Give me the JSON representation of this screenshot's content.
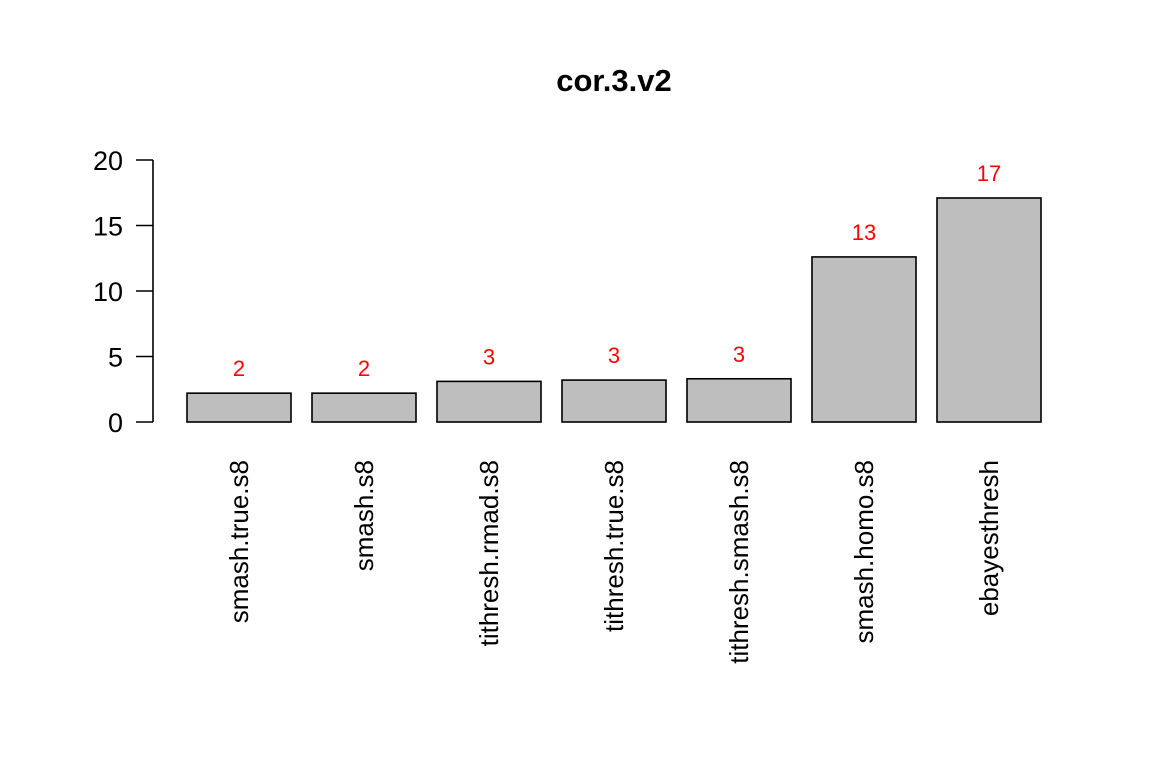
{
  "chart_data": {
    "type": "bar",
    "title": "cor.3.v2",
    "xlabel": "",
    "ylabel": "",
    "categories": [
      "smash.true.s8",
      "smash.s8",
      "tithresh.rmad.s8",
      "tithresh.true.s8",
      "tithresh.smash.s8",
      "smash.homo.s8",
      "ebayesthresh"
    ],
    "values": [
      2.2,
      2.2,
      3.1,
      3.2,
      3.3,
      12.6,
      17.1
    ],
    "data_labels": [
      "2",
      "2",
      "3",
      "3",
      "3",
      "13",
      "17"
    ],
    "yticks": [
      "0",
      "5",
      "10",
      "15",
      "20"
    ],
    "ylim": [
      0,
      20
    ],
    "bar_color": "#bebebe",
    "label_color": "#ff0000",
    "grid": false,
    "legend": "none"
  }
}
